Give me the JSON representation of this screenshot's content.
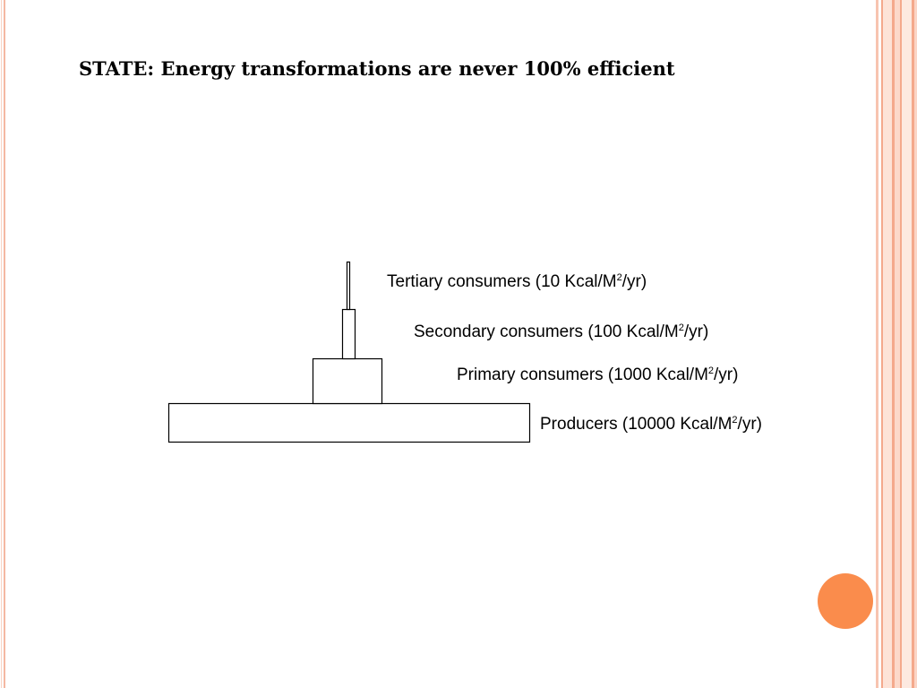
{
  "slide": {
    "title": "STATE: Energy transformations are never 100% efficient"
  },
  "diagram": {
    "type": "energy-pyramid",
    "levels": [
      {
        "name": "Producers",
        "value": "10000",
        "unit_prefix": "Kcal/M",
        "unit_sup": "2",
        "unit_suffix": "/yr"
      },
      {
        "name": "Primary consumers",
        "value": "1000",
        "unit_prefix": "Kcal/M",
        "unit_sup": "2",
        "unit_suffix": "/yr"
      },
      {
        "name": "Secondary consumers",
        "value": "100",
        "unit_prefix": "Kcal/M",
        "unit_sup": "2",
        "unit_suffix": "/yr"
      },
      {
        "name": "Tertiary consumers",
        "value": "10",
        "unit_prefix": "Kcal/M",
        "unit_sup": "2",
        "unit_suffix": "/yr"
      }
    ]
  },
  "colors": {
    "accent_circle": "#fa8c4c",
    "frame_stripe_dark": "#f4a98c",
    "frame_stripe_light": "#fbd5c6",
    "frame_fill": "#fde9e0"
  }
}
